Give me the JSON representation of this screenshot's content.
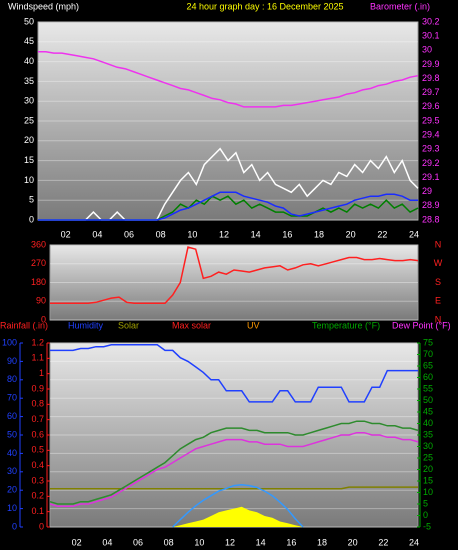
{
  "chart_data": [
    {
      "type": "line",
      "title": "24 hour graph day : 16 December 2025",
      "y_label": "Windspeed (mph)",
      "y2_label": "Barometer (.in)",
      "xlim": [
        0,
        24
      ],
      "xticks": [
        {
          "value": 2,
          "label": "02"
        },
        {
          "value": 4,
          "label": "04"
        },
        {
          "value": 6,
          "label": "06"
        },
        {
          "value": 8,
          "label": "08"
        },
        10,
        12,
        14,
        16,
        18,
        20,
        22,
        24
      ],
      "ylim": [
        0,
        50
      ],
      "yticks": [
        0,
        5,
        10,
        15,
        20,
        25,
        30,
        35,
        40,
        45,
        50
      ],
      "y2lim": [
        28.8,
        30.2
      ],
      "y2ticks": [
        28.8,
        28.9,
        29,
        29.1,
        29.2,
        29.3,
        29.4,
        29.5,
        29.6,
        29.7,
        29.8,
        29.9,
        {
          "value": 30,
          "label": "30"
        },
        30.1,
        30.2
      ],
      "grid": true,
      "x": [
        0,
        0.5,
        1,
        1.5,
        2,
        2.5,
        3,
        3.5,
        4,
        4.5,
        5,
        5.5,
        6,
        6.5,
        7,
        7.5,
        8,
        8.5,
        9,
        9.5,
        10,
        10.5,
        11,
        11.5,
        12,
        12.5,
        13,
        13.5,
        14,
        14.5,
        15,
        15.5,
        16,
        16.5,
        17,
        17.5,
        18,
        18.5,
        19,
        19.5,
        20,
        20.5,
        21,
        21.5,
        22,
        22.5,
        23,
        23.5,
        24
      ],
      "series": [
        {
          "color": "#ffffff",
          "values": [
            0,
            0,
            0,
            0,
            0,
            0,
            0,
            2,
            0,
            0,
            2,
            0,
            0,
            0,
            0,
            0,
            4,
            7,
            10,
            12,
            9,
            14,
            16,
            18,
            15,
            17,
            12,
            14,
            10,
            12,
            9,
            8,
            7,
            9,
            6,
            8,
            10,
            9,
            12,
            11,
            14,
            12,
            15,
            13,
            16,
            12,
            15,
            10,
            8
          ]
        },
        {
          "color": "#008000",
          "values": [
            0,
            0,
            0,
            0,
            0,
            0,
            0,
            0,
            0,
            0,
            0,
            0,
            0,
            0,
            0,
            0,
            1,
            2,
            4,
            3,
            5,
            4,
            6,
            5,
            6,
            4,
            5,
            3,
            4,
            3,
            2,
            2,
            1,
            1,
            1,
            2,
            3,
            2,
            3,
            2,
            4,
            3,
            4,
            3,
            5,
            3,
            4,
            2,
            3
          ]
        },
        {
          "color": "#1a2cff",
          "values": [
            0,
            0,
            0,
            0,
            0,
            0,
            0,
            0,
            0,
            0,
            0,
            0,
            0,
            0,
            0,
            0,
            0.5,
            1.5,
            2.5,
            3,
            4,
            5,
            6,
            7,
            7,
            7,
            6,
            5.5,
            5,
            4.5,
            3.5,
            3,
            1.5,
            1,
            1.5,
            2,
            2.5,
            3,
            3.5,
            4,
            5,
            5.5,
            6,
            6,
            6.5,
            6.5,
            6,
            5,
            5
          ]
        },
        {
          "color": "#ee33ee",
          "axis": "y2",
          "values": [
            29.99,
            29.99,
            29.98,
            29.98,
            29.97,
            29.96,
            29.95,
            29.94,
            29.92,
            29.9,
            29.88,
            29.87,
            29.85,
            29.83,
            29.81,
            29.79,
            29.77,
            29.75,
            29.73,
            29.72,
            29.7,
            29.68,
            29.66,
            29.65,
            29.63,
            29.62,
            29.6,
            29.6,
            29.6,
            29.6,
            29.6,
            29.61,
            29.61,
            29.62,
            29.63,
            29.64,
            29.65,
            29.66,
            29.67,
            29.69,
            29.7,
            29.72,
            29.73,
            29.75,
            29.76,
            29.78,
            29.79,
            29.81,
            29.82
          ]
        }
      ]
    },
    {
      "type": "line",
      "xlim": [
        0,
        24
      ],
      "ylim": [
        0,
        360
      ],
      "yticks": [
        0,
        90,
        180,
        270,
        360
      ],
      "y2lim": [
        0,
        360
      ],
      "y2ticks": [
        {
          "value": 0,
          "label": "N"
        },
        {
          "value": 90,
          "label": "E"
        },
        {
          "value": 180,
          "label": "S"
        },
        {
          "value": 270,
          "label": "W"
        },
        {
          "value": 360,
          "label": "N"
        }
      ],
      "grid": true,
      "x": [
        0,
        0.5,
        1,
        1.5,
        2,
        2.5,
        3,
        3.5,
        4,
        4.5,
        5,
        5.5,
        6,
        6.5,
        7,
        7.5,
        8,
        8.5,
        9,
        9.5,
        10,
        10.5,
        11,
        11.5,
        12,
        12.5,
        13,
        13.5,
        14,
        14.5,
        15,
        15.5,
        16,
        16.5,
        17,
        17.5,
        18,
        18.5,
        19,
        19.5,
        20,
        20.5,
        21,
        21.5,
        22,
        22.5,
        23,
        23.5,
        24
      ],
      "series": [
        {
          "color": "#ff2020",
          "values": [
            80,
            80,
            80,
            80,
            80,
            80,
            85,
            95,
            105,
            110,
            85,
            80,
            80,
            80,
            80,
            80,
            120,
            180,
            350,
            340,
            200,
            210,
            230,
            220,
            240,
            235,
            230,
            240,
            250,
            255,
            260,
            240,
            250,
            265,
            270,
            260,
            270,
            280,
            290,
            300,
            300,
            290,
            290,
            295,
            290,
            285,
            285,
            290,
            285
          ]
        }
      ]
    },
    {
      "type": "line",
      "xlim": [
        0,
        24
      ],
      "xticks": [
        {
          "value": 2,
          "label": "02"
        },
        {
          "value": 4,
          "label": "04"
        },
        {
          "value": 6,
          "label": "06"
        },
        {
          "value": 8,
          "label": "08"
        },
        10,
        12,
        14,
        16,
        18,
        20,
        22,
        24
      ],
      "ylim": [
        0,
        100
      ],
      "yticks": [
        0,
        10,
        20,
        30,
        40,
        50,
        60,
        70,
        80,
        90,
        100
      ],
      "y2lim": [
        -5,
        75
      ],
      "y2ticks": [
        -5,
        0,
        5,
        10,
        15,
        20,
        25,
        30,
        35,
        40,
        45,
        50,
        55,
        60,
        65,
        70,
        75
      ],
      "y3lim": [
        0,
        1.2
      ],
      "y3ticks": [
        0,
        0.1,
        0.2,
        0.3,
        0.4,
        0.5,
        0.6,
        0.7,
        0.8,
        0.9,
        1,
        1.1,
        1.2
      ],
      "grid": true,
      "x": [
        0,
        0.5,
        1,
        1.5,
        2,
        2.5,
        3,
        3.5,
        4,
        4.5,
        5,
        5.5,
        6,
        6.5,
        7,
        7.5,
        8,
        8.5,
        9,
        9.5,
        10,
        10.5,
        11,
        11.5,
        12,
        12.5,
        13,
        13.5,
        14,
        14.5,
        15,
        15.5,
        16,
        16.5,
        17,
        17.5,
        18,
        18.5,
        19,
        19.5,
        20,
        20.5,
        21,
        21.5,
        22,
        22.5,
        23,
        23.5,
        24
      ],
      "series": [
        {
          "name": "Rainfall (.in)",
          "legend_color": "#ff2020",
          "color": "#808000",
          "axis": "y3",
          "values": [
            0.25,
            0.25,
            0.25,
            0.25,
            0.25,
            0.25,
            0.25,
            0.25,
            0.25,
            0.25,
            0.25,
            0.25,
            0.25,
            0.25,
            0.25,
            0.25,
            0.25,
            0.25,
            0.25,
            0.25,
            0.25,
            0.25,
            0.25,
            0.25,
            0.25,
            0.25,
            0.25,
            0.25,
            0.25,
            0.25,
            0.25,
            0.25,
            0.25,
            0.25,
            0.25,
            0.25,
            0.25,
            0.25,
            0.25,
            0.26,
            0.26,
            0.26,
            0.26,
            0.26,
            0.26,
            0.26,
            0.26,
            0.26,
            0.26
          ]
        },
        {
          "name": "Humidity",
          "legend_color": "#2040ff",
          "color": "#2040ff",
          "axis": "y",
          "values": [
            96,
            96,
            96,
            96,
            97,
            97,
            98,
            98,
            99,
            99,
            99,
            99,
            99,
            99,
            99,
            96,
            96,
            92,
            90,
            87,
            84,
            80,
            80,
            74,
            74,
            74,
            68,
            68,
            68,
            68,
            74,
            74,
            68,
            68,
            68,
            76,
            76,
            76,
            76,
            68,
            68,
            68,
            76,
            76,
            85,
            85,
            85,
            85,
            85
          ]
        },
        {
          "name": "Solar",
          "legend_color": "#a0a000",
          "color": "#ffff00",
          "style": "area",
          "axis": "y",
          "values": [
            null,
            null,
            null,
            null,
            null,
            null,
            null,
            null,
            null,
            null,
            null,
            null,
            null,
            null,
            null,
            null,
            0,
            1,
            2,
            3,
            4,
            6,
            8,
            9,
            10,
            11,
            9,
            8,
            6,
            5,
            3,
            2,
            1,
            0,
            null,
            null,
            null,
            null,
            null,
            null,
            null,
            null,
            null,
            null,
            null,
            null,
            null,
            null,
            null
          ]
        },
        {
          "name": "Max solar",
          "legend_color": "#ff2020",
          "color": "#3399ff",
          "axis": "y",
          "values": [
            null,
            null,
            null,
            null,
            null,
            null,
            null,
            null,
            null,
            null,
            null,
            null,
            null,
            null,
            null,
            null,
            0,
            4,
            8,
            11.5,
            14.5,
            17,
            19.5,
            21,
            22.5,
            23,
            22.5,
            21.5,
            19.5,
            17,
            13.5,
            9.5,
            4.5,
            0,
            null,
            null,
            null,
            null,
            null,
            null,
            null,
            null,
            null,
            null,
            null,
            null,
            null,
            null,
            null
          ]
        },
        {
          "name": "UV",
          "legend_color": "#ff9900",
          "color": "#ff9900",
          "axis": "y",
          "values": [
            null,
            null,
            null,
            null,
            null,
            null,
            null,
            null,
            null,
            null,
            null,
            null,
            null,
            null,
            null,
            null,
            null,
            null,
            null,
            null,
            null,
            null,
            null,
            null,
            null,
            null,
            null,
            null,
            null,
            null,
            null,
            null,
            null,
            null,
            null,
            null,
            null,
            null,
            null,
            null,
            null,
            null,
            null,
            null,
            null,
            null,
            null,
            null,
            null
          ]
        },
        {
          "name": "Temperature (°F)",
          "legend_color": "#00aa00",
          "color": "#2e8b2e",
          "axis": "y2",
          "values": [
            6,
            5,
            5,
            5,
            6,
            6,
            7,
            8,
            9,
            11,
            13,
            15,
            17,
            19,
            21,
            23,
            26,
            29,
            31,
            33,
            34,
            36,
            37,
            38,
            38,
            38,
            37,
            37,
            36,
            36,
            36,
            36,
            35,
            35,
            36,
            37,
            38,
            39,
            40,
            40,
            41,
            41,
            40,
            40,
            39,
            39,
            38,
            38,
            37
          ]
        },
        {
          "name": "Dew Point (°F)",
          "legend_color": "#ff33ff",
          "color": "#dd33dd",
          "axis": "y2",
          "values": [
            5,
            4,
            4,
            4,
            5,
            5,
            6,
            7,
            8,
            10,
            12,
            14,
            16,
            18,
            20,
            21,
            23,
            25,
            27,
            29,
            30,
            31,
            32,
            33,
            33,
            33,
            32,
            32,
            31,
            31,
            31,
            30,
            30,
            30,
            31,
            32,
            33,
            34,
            35,
            35,
            36,
            36,
            35,
            35,
            34,
            34,
            33,
            33,
            32
          ]
        }
      ]
    }
  ]
}
